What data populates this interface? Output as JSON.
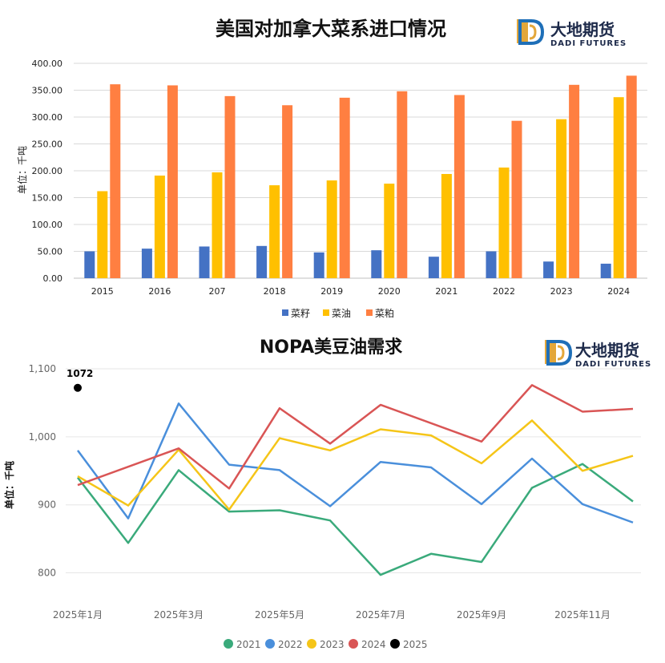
{
  "brand": {
    "cn": "大地期货",
    "en": "DADI FUTURES",
    "colors": {
      "gold": "#E3A73A",
      "blue": "#1E6FB8",
      "navy": "#1d2a4a"
    }
  },
  "chart_data": [
    {
      "type": "bar",
      "title": "美国对加拿大菜系进口情况",
      "ylabel": "单位：千吨",
      "xlabel": "",
      "categories": [
        "2015",
        "2016",
        "207",
        "2018",
        "2019",
        "2020",
        "2021",
        "2022",
        "2023",
        "2024"
      ],
      "ylim": [
        0,
        400
      ],
      "yticks": [
        "0.00",
        "50.00",
        "100.00",
        "150.00",
        "200.00",
        "250.00",
        "300.00",
        "350.00",
        "400.00"
      ],
      "grid": true,
      "legend_position": "bottom",
      "series": [
        {
          "name": "菜籽",
          "color": "#4472C4",
          "values": [
            50,
            55,
            59,
            60,
            48,
            52,
            40,
            50,
            31,
            27
          ]
        },
        {
          "name": "菜油",
          "color": "#FFC000",
          "values": [
            162,
            191,
            197,
            173,
            182,
            176,
            194,
            206,
            296,
            337
          ]
        },
        {
          "name": "菜粕",
          "color": "#FF7F41",
          "values": [
            361,
            359,
            339,
            322,
            336,
            348,
            341,
            293,
            360,
            377
          ]
        }
      ]
    },
    {
      "type": "line",
      "title": "NOPA美豆油需求",
      "ylabel": "单位：千吨",
      "xlabel": "",
      "x": [
        "2025年1月",
        "2025年2月",
        "2025年3月",
        "2025年4月",
        "2025年5月",
        "2025年6月",
        "2025年7月",
        "2025年8月",
        "2025年9月",
        "2025年10月",
        "2025年11月",
        "2025年12月"
      ],
      "xtick_labels": [
        "2025年1月",
        "2025年3月",
        "2025年5月",
        "2025年7月",
        "2025年9月",
        "2025年11月"
      ],
      "ylim": [
        770,
        1100
      ],
      "yticks": [
        "800",
        "900",
        "1,000",
        "1,100"
      ],
      "grid": true,
      "legend_position": "bottom",
      "series": [
        {
          "name": "2021",
          "color": "#3AAA7B",
          "values": [
            940,
            844,
            951,
            890,
            892,
            877,
            797,
            828,
            816,
            925,
            960,
            905
          ]
        },
        {
          "name": "2022",
          "color": "#4A8FDB",
          "values": [
            980,
            880,
            1049,
            959,
            951,
            898,
            963,
            955,
            901,
            968,
            901,
            874
          ]
        },
        {
          "name": "2023",
          "color": "#F5C518",
          "values": [
            942,
            899,
            981,
            893,
            998,
            980,
            1011,
            1002,
            961,
            1024,
            950,
            972
          ]
        },
        {
          "name": "2024",
          "color": "#D95555",
          "values": [
            929,
            null,
            983,
            924,
            1042,
            990,
            1047,
            null,
            993,
            1076,
            1037,
            1041
          ]
        },
        {
          "name": "2025",
          "color": "#000000",
          "values": [
            1072,
            null,
            null,
            null,
            null,
            null,
            null,
            null,
            null,
            null,
            null,
            null
          ]
        }
      ],
      "annotations": [
        {
          "text": "1072"
        }
      ]
    }
  ]
}
